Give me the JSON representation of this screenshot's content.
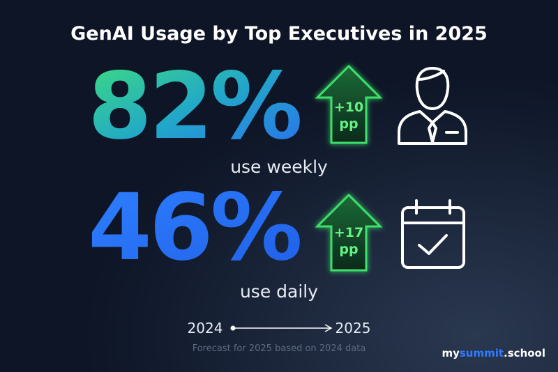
{
  "title": "GenAI Usage by Top Executives in 2025",
  "stats": [
    {
      "value": "82%",
      "change": "+10",
      "unit": "pp",
      "label": "use weekly"
    },
    {
      "value": "46%",
      "change": "+17",
      "unit": "pp",
      "label": "use daily"
    }
  ],
  "timeline": {
    "start": "2024",
    "end": "2025"
  },
  "footnote": "Forecast for 2025 based on 2024 data",
  "brand": {
    "prefix": "my",
    "highlight": "summit",
    "suffix": ".school"
  }
}
